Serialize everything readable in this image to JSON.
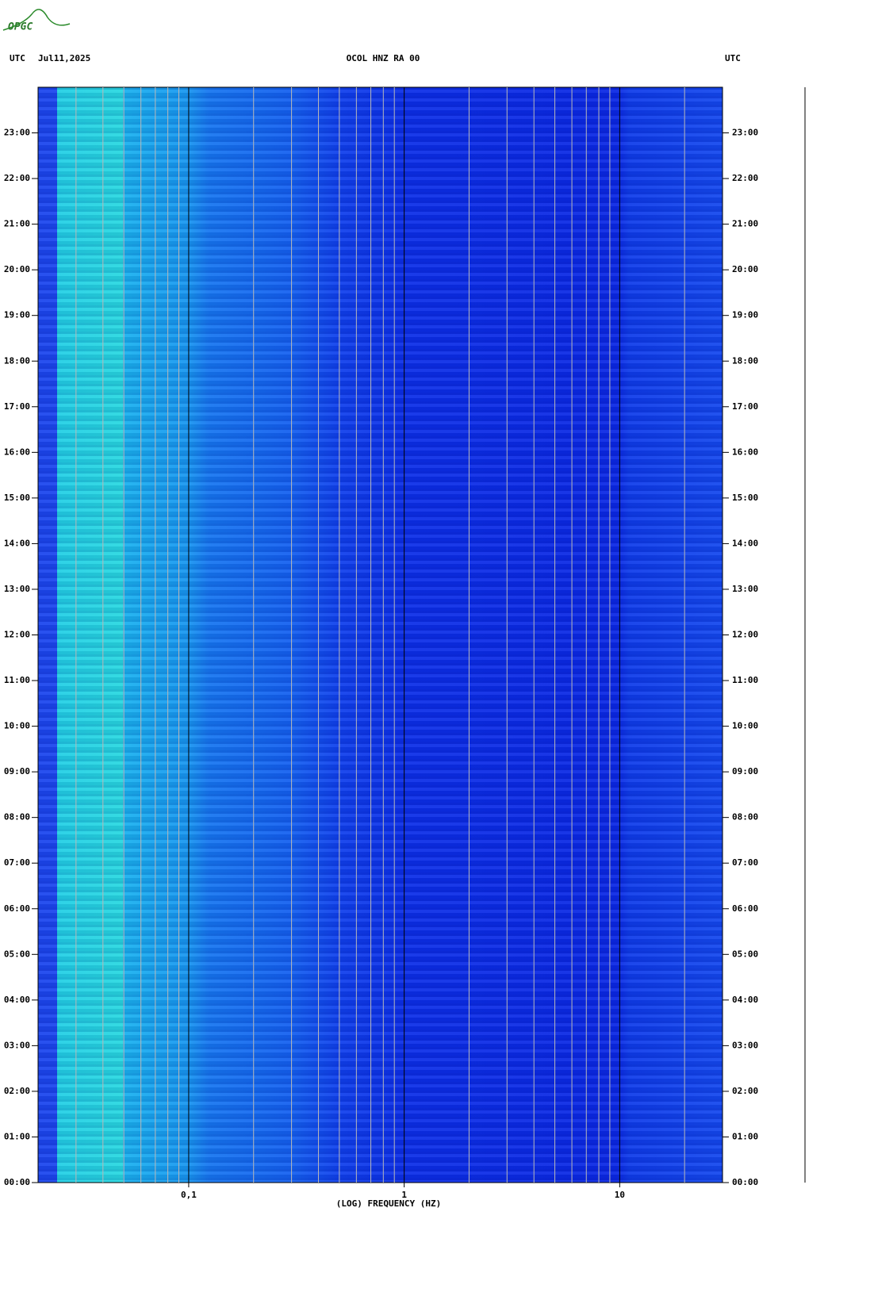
{
  "logo": "OPGC",
  "chart_data": {
    "type": "spectrogram",
    "title": "OCOL HNZ RA 00",
    "time_zone": "UTC",
    "date": "Jul11,2025",
    "xlabel": "(LOG) FREQUENCY (HZ)",
    "xscale": "log",
    "xlim": [
      0.02,
      30
    ],
    "xticks": [
      {
        "value": 0.1,
        "label": "0,1"
      },
      1,
      10
    ],
    "xminor": [
      0.03,
      0.04,
      0.05,
      0.06,
      0.07,
      0.08,
      0.09,
      0.2,
      0.3,
      0.4,
      0.5,
      0.6,
      0.7,
      0.8,
      0.9,
      2,
      3,
      4,
      5,
      6,
      7,
      8,
      9,
      20
    ],
    "grid": true,
    "ylim": [
      0,
      24
    ],
    "yticks": [
      {
        "value": 0,
        "label": "00:00"
      },
      {
        "value": 1,
        "label": "01:00"
      },
      {
        "value": 2,
        "label": "02:00"
      },
      {
        "value": 3,
        "label": "03:00"
      },
      {
        "value": 4,
        "label": "04:00"
      },
      {
        "value": 5,
        "label": "05:00"
      },
      {
        "value": 6,
        "label": "06:00"
      },
      {
        "value": 7,
        "label": "07:00"
      },
      {
        "value": 8,
        "label": "08:00"
      },
      {
        "value": 9,
        "label": "09:00"
      },
      {
        "value": 10,
        "label": "10:00"
      },
      {
        "value": 11,
        "label": "11:00"
      },
      {
        "value": 12,
        "label": "12:00"
      },
      {
        "value": 13,
        "label": "13:00"
      },
      {
        "value": 14,
        "label": "14:00"
      },
      {
        "value": 15,
        "label": "15:00"
      },
      {
        "value": 16,
        "label": "16:00"
      },
      {
        "value": 17,
        "label": "17:00"
      },
      {
        "value": 18,
        "label": "18:00"
      },
      {
        "value": 19,
        "label": "19:00"
      },
      {
        "value": 20,
        "label": "20:00"
      },
      {
        "value": 21,
        "label": "21:00"
      },
      {
        "value": 22,
        "label": "22:00"
      },
      {
        "value": 23,
        "label": "23:00"
      }
    ]
  }
}
